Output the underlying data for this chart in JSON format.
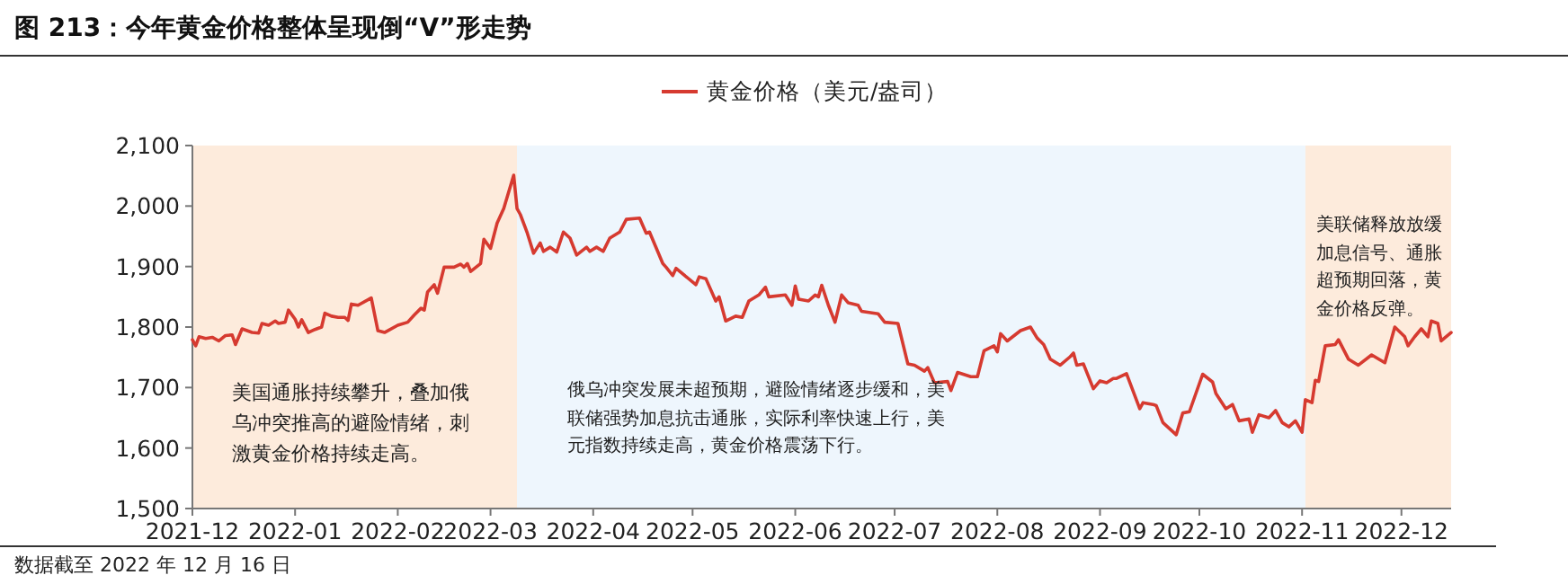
{
  "chart_data": {
    "type": "line",
    "title": "图 213：今年黄金价格整体呈现倒“V”形走势",
    "legend": "top",
    "grid": false,
    "marker": "none",
    "line_style": "solid",
    "xlim": [
      "2021-12-01",
      "2022-12-16"
    ],
    "xticks": [
      {
        "value": "2021-12-01",
        "label": "2021-12"
      },
      {
        "value": "2022-01-01",
        "label": "2022-01"
      },
      {
        "value": "2022-02-01",
        "label": "2022-02"
      },
      {
        "value": "2022-03-01",
        "label": "2022-03"
      },
      {
        "value": "2022-04-01",
        "label": "2022-04"
      },
      {
        "value": "2022-05-01",
        "label": "2022-05"
      },
      {
        "value": "2022-06-01",
        "label": "2022-06"
      },
      {
        "value": "2022-07-01",
        "label": "2022-07"
      },
      {
        "value": "2022-08-01",
        "label": "2022-08"
      },
      {
        "value": "2022-09-01",
        "label": "2022-09"
      },
      {
        "value": "2022-10-01",
        "label": "2022-10"
      },
      {
        "value": "2022-11-01",
        "label": "2022-11"
      },
      {
        "value": "2022-12-01",
        "label": "2022-12"
      }
    ],
    "ylim": [
      1500,
      2100
    ],
    "yticks": [
      {
        "value": 1500,
        "label": "1,500"
      },
      {
        "value": 1600,
        "label": "1,600"
      },
      {
        "value": 1700,
        "label": "1,700"
      },
      {
        "value": 1800,
        "label": "1,800"
      },
      {
        "value": 1900,
        "label": "1,900"
      },
      {
        "value": 2000,
        "label": "2,000"
      },
      {
        "value": 2100,
        "label": "2,100"
      }
    ],
    "bands": [
      {
        "axis": "x",
        "from": "2021-12-01",
        "to": "2022-03-09",
        "label": "美国通胀持续攀升，叠加俄乌冲突推高的避险情绪，刺激黄金价格持续走高。",
        "color": "#fdebdc"
      },
      {
        "axis": "x",
        "from": "2022-03-09",
        "to": "2022-11-02",
        "label": "俄乌冲突发展未超预期，避险情绪逐步缓和，美联储强势加息抗击通胀，实际利率快速上行，美元指数持续走高，黄金价格震荡下行。",
        "color": "#eef6fd"
      },
      {
        "axis": "x",
        "from": "2022-11-02",
        "to": "2022-12-16",
        "label": "美联储释放放缓加息信号、通胀超预期回落，黄金价格反弹。",
        "color": "#fdebdc"
      }
    ],
    "annotations": [
      "数据截至 2022 年 12 月 16 日"
    ],
    "series": [
      {
        "name": "黄金价格（美元/盎司）",
        "color": "#d63a30",
        "x": [
          "2021-12-01",
          "2021-12-02",
          "2021-12-03",
          "2021-12-05",
          "2021-12-07",
          "2021-12-09",
          "2021-12-11",
          "2021-12-13",
          "2021-12-14",
          "2021-12-16",
          "2021-12-19",
          "2021-12-21",
          "2021-12-22",
          "2021-12-24",
          "2021-12-26",
          "2021-12-27",
          "2021-12-29",
          "2021-12-30",
          "2022-01-01",
          "2022-01-02",
          "2022-01-03",
          "2022-01-05",
          "2022-01-07",
          "2022-01-09",
          "2022-01-10",
          "2022-01-12",
          "2022-01-14",
          "2022-01-16",
          "2022-01-17",
          "2022-01-18",
          "2022-01-20",
          "2022-01-24",
          "2022-01-26",
          "2022-01-28",
          "2022-02-01",
          "2022-02-04",
          "2022-02-06",
          "2022-02-08",
          "2022-02-09",
          "2022-02-10",
          "2022-02-12",
          "2022-02-13",
          "2022-02-15",
          "2022-02-18",
          "2022-02-20",
          "2022-02-21",
          "2022-02-22",
          "2022-02-23",
          "2022-02-26",
          "2022-02-27",
          "2022-03-01",
          "2022-03-03",
          "2022-03-05",
          "2022-03-08",
          "2022-03-09",
          "2022-03-10",
          "2022-03-12",
          "2022-03-14",
          "2022-03-16",
          "2022-03-17",
          "2022-03-19",
          "2022-03-21",
          "2022-03-23",
          "2022-03-25",
          "2022-03-27",
          "2022-03-30",
          "2022-03-31",
          "2022-04-02",
          "2022-04-04",
          "2022-04-06",
          "2022-04-09",
          "2022-04-11",
          "2022-04-15",
          "2022-04-17",
          "2022-04-18",
          "2022-04-22",
          "2022-04-23",
          "2022-04-25",
          "2022-04-26",
          "2022-05-02",
          "2022-05-03",
          "2022-05-05",
          "2022-05-08",
          "2022-05-09",
          "2022-05-11",
          "2022-05-14",
          "2022-05-16",
          "2022-05-18",
          "2022-05-21",
          "2022-05-23",
          "2022-05-24",
          "2022-05-29",
          "2022-05-31",
          "2022-06-01",
          "2022-06-02",
          "2022-06-05",
          "2022-06-07",
          "2022-06-08",
          "2022-06-09",
          "2022-06-11",
          "2022-06-13",
          "2022-06-15",
          "2022-06-17",
          "2022-06-20",
          "2022-06-21",
          "2022-06-26",
          "2022-06-28",
          "2022-07-02",
          "2022-07-05",
          "2022-07-07",
          "2022-07-10",
          "2022-07-11",
          "2022-07-13",
          "2022-07-17",
          "2022-07-18",
          "2022-07-20",
          "2022-07-24",
          "2022-07-26",
          "2022-07-28",
          "2022-07-31",
          "2022-08-01",
          "2022-08-02",
          "2022-08-04",
          "2022-08-08",
          "2022-08-11",
          "2022-08-13",
          "2022-08-15",
          "2022-08-17",
          "2022-08-20",
          "2022-08-23",
          "2022-08-24",
          "2022-08-25",
          "2022-08-27",
          "2022-08-30",
          "2022-09-01",
          "2022-09-03",
          "2022-09-05",
          "2022-09-06",
          "2022-09-09",
          "2022-09-13",
          "2022-09-14",
          "2022-09-17",
          "2022-09-18",
          "2022-09-20",
          "2022-09-24",
          "2022-09-26",
          "2022-09-28",
          "2022-10-02",
          "2022-10-05",
          "2022-10-06",
          "2022-10-09",
          "2022-10-11",
          "2022-10-13",
          "2022-10-16",
          "2022-10-17",
          "2022-10-19",
          "2022-10-22",
          "2022-10-24",
          "2022-10-26",
          "2022-10-28",
          "2022-10-30",
          "2022-11-01",
          "2022-11-02",
          "2022-11-04",
          "2022-11-05",
          "2022-11-06",
          "2022-11-08",
          "2022-11-11",
          "2022-11-12",
          "2022-11-15",
          "2022-11-18",
          "2022-11-22",
          "2022-11-26",
          "2022-11-29",
          "2022-12-02",
          "2022-12-03",
          "2022-12-05",
          "2022-12-07",
          "2022-12-09",
          "2022-12-10",
          "2022-12-12",
          "2022-12-13",
          "2022-12-16"
        ],
        "values": [
          1779,
          1769,
          1784,
          1781,
          1783,
          1777,
          1786,
          1787,
          1771,
          1797,
          1791,
          1790,
          1806,
          1803,
          1810,
          1806,
          1808,
          1828,
          1813,
          1800,
          1812,
          1791,
          1796,
          1800,
          1823,
          1818,
          1816,
          1816,
          1811,
          1838,
          1836,
          1848,
          1794,
          1791,
          1803,
          1808,
          1820,
          1831,
          1828,
          1858,
          1870,
          1856,
          1899,
          1899,
          1904,
          1899,
          1905,
          1892,
          1905,
          1945,
          1930,
          1972,
          1996,
          2051,
          1996,
          1986,
          1957,
          1922,
          1939,
          1925,
          1932,
          1924,
          1957,
          1947,
          1919,
          1932,
          1925,
          1932,
          1925,
          1947,
          1957,
          1978,
          1980,
          1955,
          1957,
          1905,
          1899,
          1885,
          1897,
          1870,
          1883,
          1880,
          1843,
          1850,
          1810,
          1818,
          1816,
          1843,
          1853,
          1866,
          1850,
          1853,
          1836,
          1868,
          1846,
          1843,
          1853,
          1850,
          1869,
          1836,
          1808,
          1853,
          1840,
          1836,
          1826,
          1822,
          1808,
          1806,
          1739,
          1737,
          1727,
          1733,
          1708,
          1710,
          1695,
          1725,
          1718,
          1718,
          1761,
          1769,
          1759,
          1789,
          1777,
          1794,
          1800,
          1782,
          1771,
          1747,
          1737,
          1751,
          1757,
          1737,
          1739,
          1698,
          1711,
          1708,
          1715,
          1715,
          1723,
          1665,
          1675,
          1672,
          1670,
          1642,
          1622,
          1658,
          1660,
          1722,
          1709,
          1690,
          1665,
          1672,
          1645,
          1648,
          1626,
          1655,
          1650,
          1662,
          1642,
          1635,
          1645,
          1626,
          1680,
          1675,
          1712,
          1710,
          1769,
          1771,
          1779,
          1747,
          1737,
          1754,
          1741,
          1800,
          1784,
          1769,
          1784,
          1797,
          1784,
          1810,
          1806,
          1777,
          1791
        ]
      }
    ]
  }
}
